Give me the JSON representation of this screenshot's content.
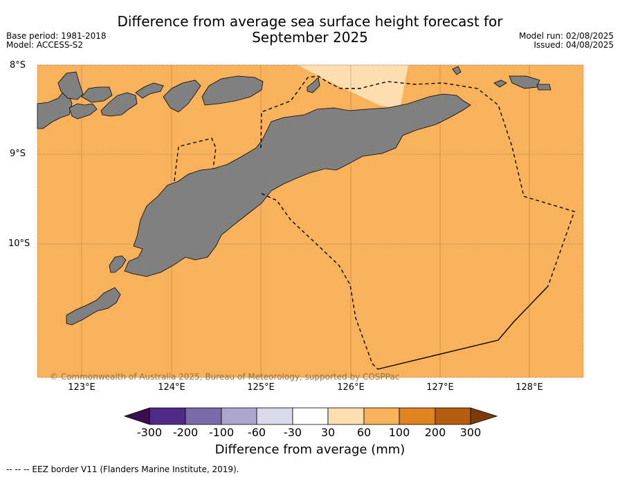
{
  "title_line1": "Difference from average sea surface height forecast for",
  "title_line2": "September 2025",
  "base_period": "Base period: 1981-2018",
  "model": "Model: ACCESS-S2",
  "model_run": "Model run: 02/08/2025",
  "issued": "Issued: 04/08/2025",
  "lat_labels": [
    "8°S",
    "9°S",
    "10°S"
  ],
  "lon_labels": [
    "123°E",
    "124°E",
    "125°E",
    "126°E",
    "127°E",
    "128°E"
  ],
  "copyright": "© Commonwealth of Australia 2025, Bureau of Meteorology, supported by COSPPac",
  "colorbar": {
    "title": "Difference from average (mm)",
    "ticks": [
      "-300",
      "-200",
      "-100",
      "-60",
      "-30",
      "30",
      "60",
      "100",
      "200",
      "300"
    ],
    "colors": [
      "#3b0f4f",
      "#4f2a87",
      "#7b6aa8",
      "#ada6cf",
      "#d9d9ea",
      "#ffffff",
      "#fddeb0",
      "#f9b25c",
      "#e0821f",
      "#b45c0f",
      "#7a3d08"
    ]
  },
  "map_colors": {
    "ocean": "#f9b25c",
    "ocean_light": "#fddeb0",
    "land": "#808080"
  },
  "footnote": "--  --  -- EEZ border V11 (Flanders Marine Institute, 2019)."
}
